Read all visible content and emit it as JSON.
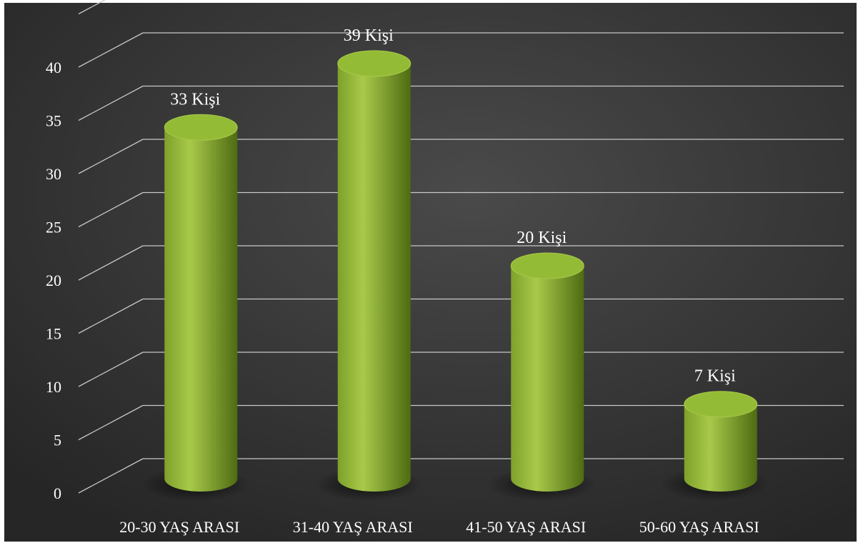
{
  "chart_data": {
    "type": "bar",
    "style": "3d-cylinder",
    "categories": [
      "20-30 YAŞ ARASI",
      "31-40 YAŞ ARASI",
      "41-50 YAŞ ARASI",
      "50-60 YAŞ ARASI"
    ],
    "values": [
      33,
      39,
      20,
      7
    ],
    "data_labels": [
      "33 Kişi",
      "39 Kişi",
      "20 Kişi",
      "7 Kişi"
    ],
    "y_ticks": [
      0,
      5,
      10,
      15,
      20,
      25,
      30,
      35,
      40
    ],
    "ylim": [
      0,
      45
    ],
    "grid": true,
    "legend": "none",
    "colors": {
      "background": "#3a3a3a",
      "bar": "#7ea12a",
      "bar_highlight": "#a8c94a",
      "bar_shadow": "#4e6b12",
      "bar_top": "#94bb36",
      "gridline": "#c8c8c8",
      "text": "#ffffff"
    }
  }
}
